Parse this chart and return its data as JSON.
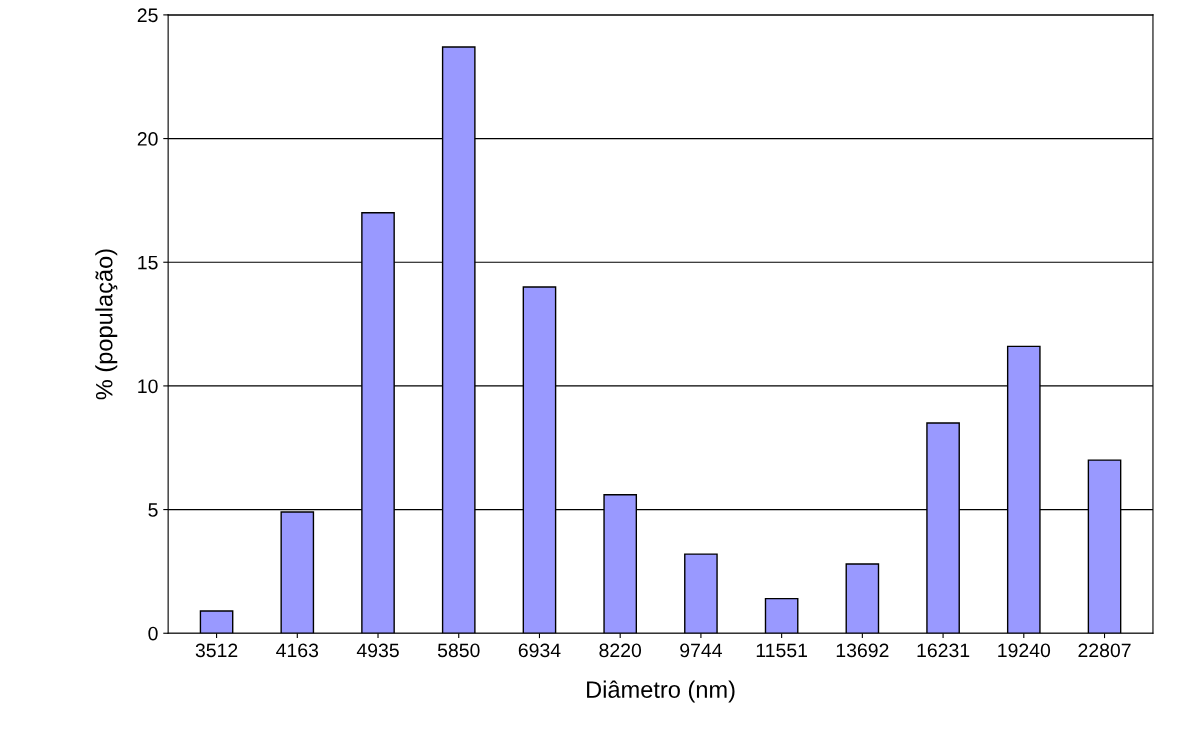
{
  "chart_data": {
    "type": "bar",
    "xlabel": "Diâmetro (nm)",
    "ylabel": "% (população)",
    "categories": [
      "3512",
      "4163",
      "4935",
      "5850",
      "6934",
      "8220",
      "9744",
      "11551",
      "13692",
      "16231",
      "19240",
      "22807"
    ],
    "values": [
      0.9,
      4.9,
      17.0,
      23.7,
      14.0,
      5.6,
      3.2,
      1.4,
      2.8,
      8.5,
      11.6,
      7.0
    ],
    "color": "#9999ff",
    "ylim": [
      0,
      25
    ],
    "yticks": [
      0,
      5,
      10,
      15,
      20,
      25
    ],
    "grid": "y"
  }
}
